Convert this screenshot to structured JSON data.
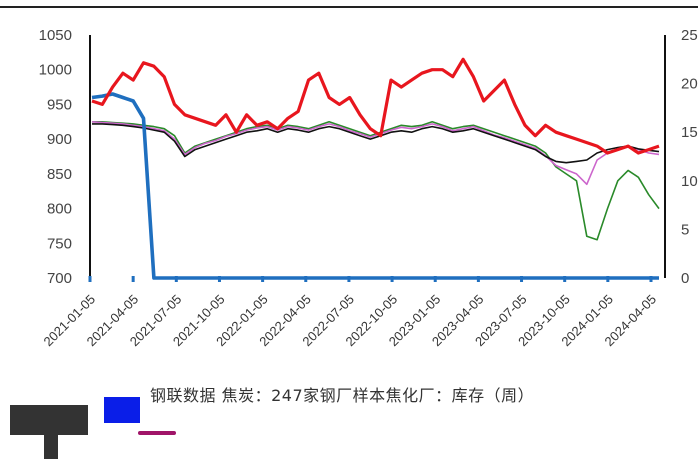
{
  "chart_data": {
    "type": "line",
    "title": "",
    "xlabel": "",
    "ylabel": "",
    "ylim": [
      700,
      1050
    ],
    "y2lim": [
      0,
      25
    ],
    "yticks": [
      700,
      750,
      800,
      850,
      900,
      950,
      1000,
      1050
    ],
    "y2ticks_visible": [
      "25",
      "20",
      "15",
      "10",
      "5",
      "0"
    ],
    "x_tick_labels": [
      "2021-01-05",
      "2021-04-05",
      "2021-07-05",
      "2021-10-05",
      "2022-01-05",
      "2022-04-05",
      "2022-07-05",
      "2022-10-05",
      "2023-01-05",
      "2023-04-05",
      "2023-07-05",
      "2023-10-05",
      "2024-01-05",
      "2024-04-05"
    ],
    "series": [
      {
        "name": "",
        "color": "#e8161e",
        "axis": "left",
        "values": [
          955,
          950,
          975,
          995,
          985,
          1010,
          1005,
          990,
          950,
          935,
          930,
          925,
          920,
          935,
          910,
          935,
          920,
          925,
          915,
          930,
          940,
          985,
          995,
          960,
          950,
          960,
          935,
          915,
          905,
          985,
          975,
          985,
          995,
          1000,
          1000,
          990,
          1015,
          990,
          955,
          970,
          985,
          950,
          920,
          905,
          920,
          910,
          905,
          900,
          895,
          890,
          880,
          885,
          890,
          880,
          885,
          890
        ]
      },
      {
        "name": "",
        "color": "#1f6fbf",
        "axis": "left",
        "values": [
          960,
          962,
          965,
          960,
          955,
          930,
          700,
          700,
          700,
          700,
          700,
          700,
          700,
          700,
          700,
          700,
          700,
          700,
          700,
          700,
          700,
          700,
          700,
          700,
          700,
          700,
          700,
          700,
          700,
          700,
          700,
          700,
          700,
          700,
          700,
          700,
          700,
          700,
          700,
          700,
          700,
          700,
          700,
          700,
          700,
          700,
          700,
          700,
          700,
          700,
          700,
          700,
          700,
          700,
          700,
          700
        ]
      },
      {
        "name": "",
        "color": "#2a8a2a",
        "axis": "left",
        "values": [
          925,
          925,
          924,
          923,
          922,
          920,
          918,
          915,
          905,
          880,
          890,
          895,
          900,
          905,
          910,
          915,
          918,
          920,
          915,
          920,
          918,
          915,
          920,
          925,
          920,
          915,
          910,
          905,
          910,
          915,
          920,
          918,
          920,
          925,
          920,
          915,
          918,
          920,
          915,
          910,
          905,
          900,
          895,
          890,
          880,
          860,
          850,
          840,
          760,
          755,
          800,
          840,
          855,
          845,
          820,
          800
        ]
      },
      {
        "name": "",
        "color": "#cc66cc",
        "axis": "left",
        "values": [
          925,
          924,
          923,
          922,
          920,
          918,
          915,
          912,
          900,
          878,
          888,
          894,
          898,
          904,
          908,
          913,
          916,
          918,
          913,
          918,
          916,
          913,
          918,
          922,
          918,
          912,
          908,
          903,
          908,
          913,
          917,
          915,
          918,
          922,
          918,
          912,
          915,
          918,
          912,
          906,
          902,
          897,
          892,
          887,
          876,
          862,
          856,
          850,
          835,
          870,
          880,
          886,
          890,
          885,
          880,
          878
        ]
      },
      {
        "name": "",
        "color": "#111111",
        "axis": "left",
        "values": [
          922,
          922,
          921,
          920,
          918,
          916,
          913,
          910,
          897,
          875,
          885,
          890,
          895,
          900,
          905,
          910,
          912,
          915,
          910,
          915,
          913,
          910,
          915,
          918,
          915,
          910,
          905,
          900,
          905,
          910,
          912,
          910,
          915,
          918,
          915,
          910,
          912,
          915,
          910,
          905,
          900,
          895,
          890,
          885,
          875,
          868,
          866,
          868,
          870,
          880,
          885,
          888,
          890,
          886,
          884,
          882
        ]
      }
    ],
    "x_ticks_marks_color": "#1f6fbf",
    "legend_placement": "bottom"
  },
  "footer": {
    "source_text": "钢联数据 焦炭：247家钢厂样本焦化厂：库存（周）"
  }
}
